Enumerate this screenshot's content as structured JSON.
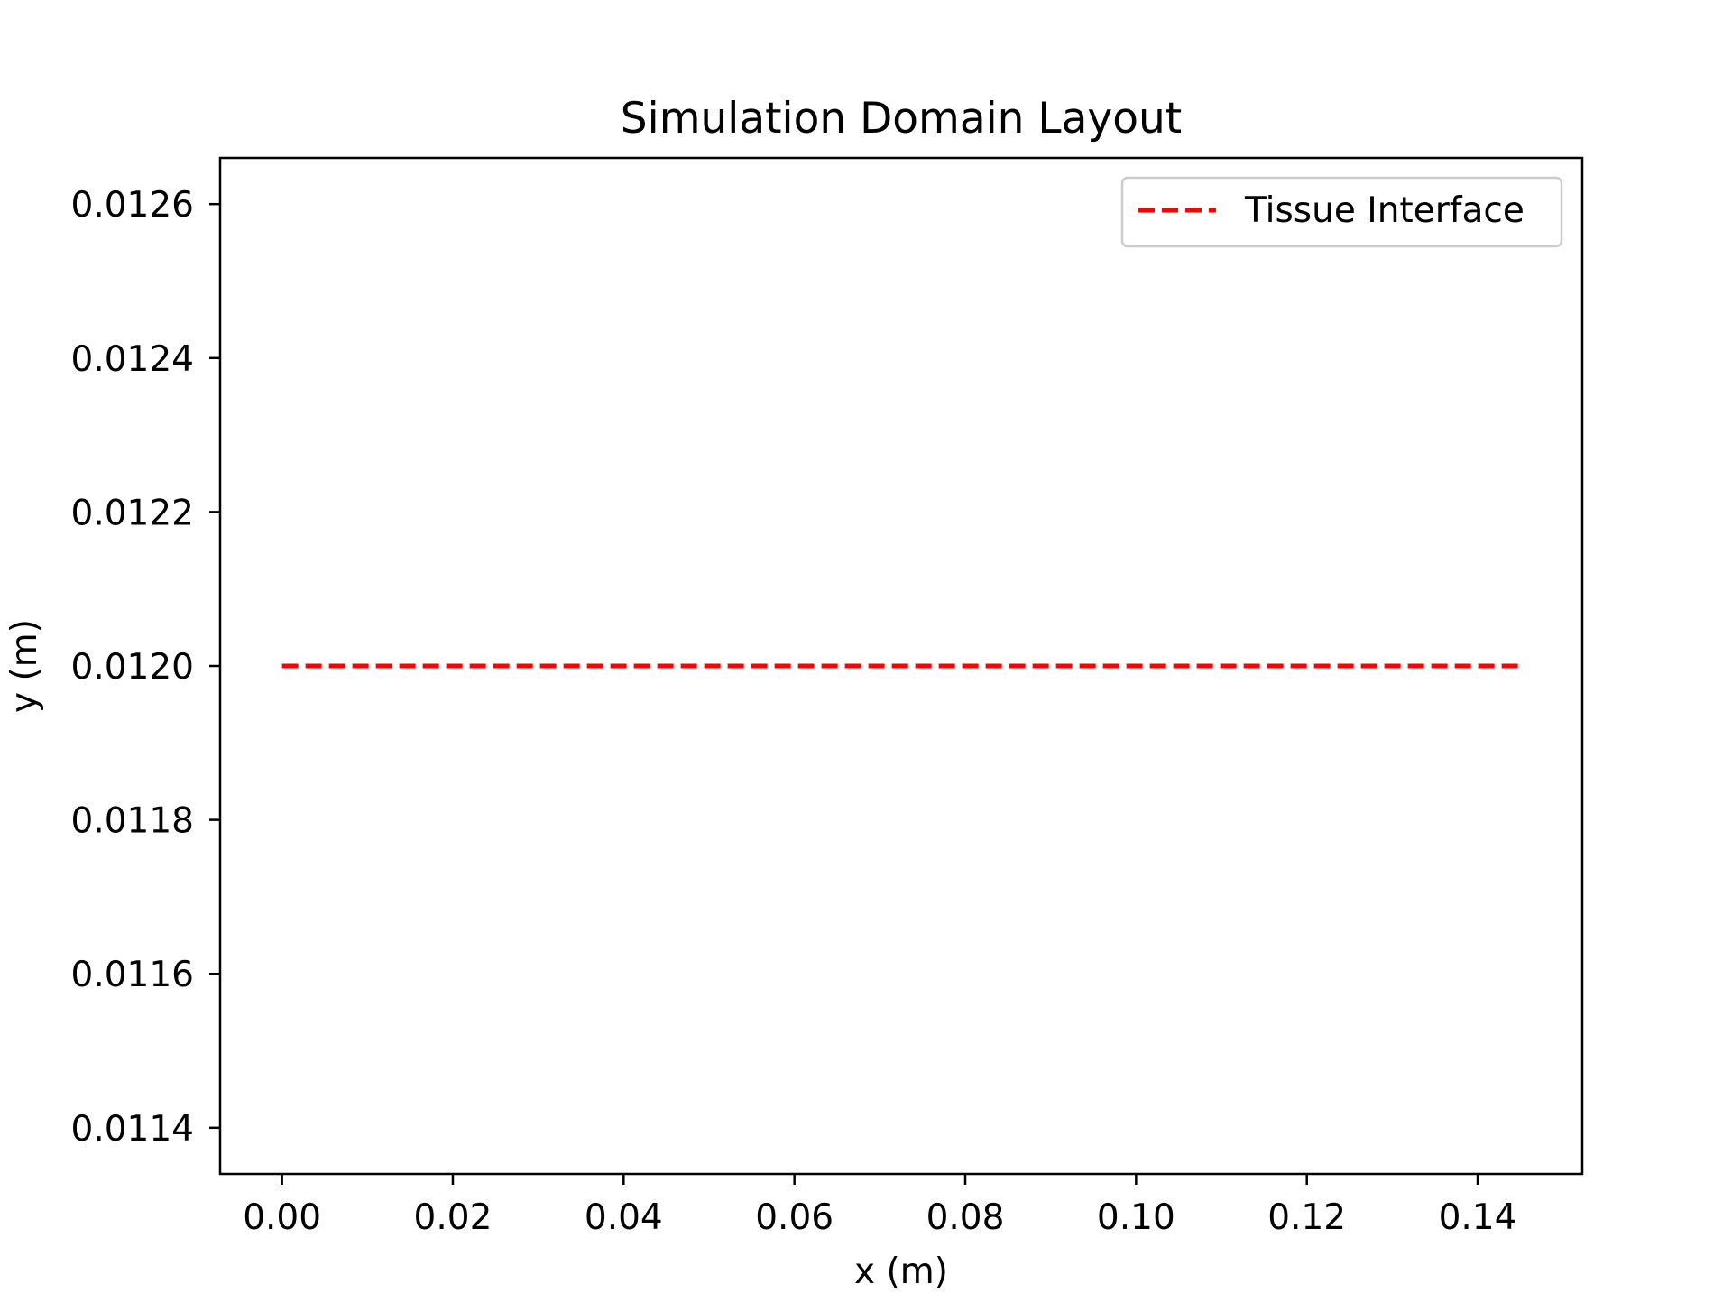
{
  "chart_data": {
    "type": "line",
    "title": "Simulation Domain Layout",
    "xlabel": "x (m)",
    "ylabel": "y (m)",
    "xlim": [
      -0.00725,
      0.15225
    ],
    "ylim": [
      0.01134,
      0.01266
    ],
    "x_ticks": [
      0.0,
      0.02,
      0.04,
      0.06,
      0.08,
      0.1,
      0.12,
      0.14
    ],
    "x_tick_labels": [
      "0.00",
      "0.02",
      "0.04",
      "0.06",
      "0.08",
      "0.10",
      "0.12",
      "0.14"
    ],
    "y_ticks": [
      0.0114,
      0.0116,
      0.0118,
      0.012,
      0.0122,
      0.0124,
      0.0126
    ],
    "y_tick_labels": [
      "0.0114",
      "0.0116",
      "0.0118",
      "0.0120",
      "0.0122",
      "0.0124",
      "0.0126"
    ],
    "grid": false,
    "legend_position": "top-right",
    "series": [
      {
        "name": "Tissue Interface",
        "color": "#ff0000",
        "line_style": "dashed",
        "x": [
          0.0,
          0.145
        ],
        "y": [
          0.012,
          0.012
        ]
      }
    ]
  }
}
